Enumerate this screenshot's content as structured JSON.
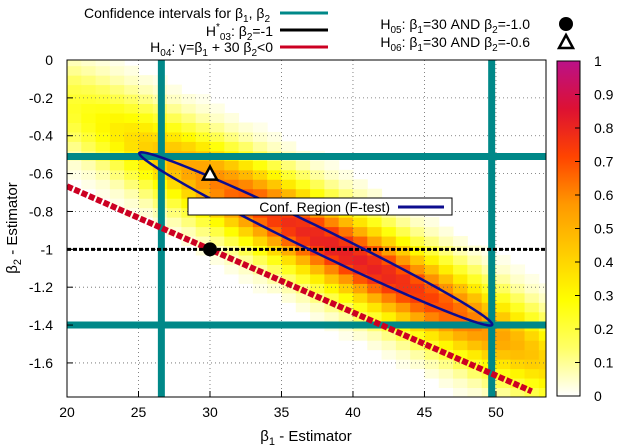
{
  "chart_data": {
    "type": "heatmap",
    "xlabel": {
      "main": "β",
      "sub": "1",
      "rest": " - Estimator"
    },
    "ylabel": {
      "main": "β",
      "sub": "2",
      "rest": " - Estimator"
    },
    "xlim": [
      20,
      53.5
    ],
    "ylim": [
      -1.78,
      0
    ],
    "x_ticks": [
      20,
      25,
      30,
      35,
      40,
      45,
      50
    ],
    "y_ticks": [
      0,
      -0.2,
      -0.4,
      -0.6,
      -0.8,
      -1,
      -1.2,
      -1.4,
      -1.6
    ],
    "y_tick_labels": [
      "0",
      "-0.2",
      "-0.4",
      "-0.6",
      "-0.8",
      "-1",
      "-1.2",
      "-1.4",
      "-1.6"
    ],
    "grid": true,
    "colorbar": {
      "range": [
        0,
        1
      ],
      "ticks": [
        0,
        0.1,
        0.2,
        0.3,
        0.4,
        0.5,
        0.6,
        0.7,
        0.8,
        0.9,
        1
      ],
      "colors": [
        "#ffffff",
        "#ffff66",
        "#ffff00",
        "#ffcc00",
        "#ff9900",
        "#ff4400",
        "#dd1133",
        "#bb1188"
      ]
    },
    "heatmap_model": {
      "center": [
        39.5,
        -1.02
      ],
      "direction_slope": -0.04,
      "along_scale": 12.0,
      "across_scale": 0.16,
      "peak": 0.82,
      "cell_x": 1.0,
      "cell_y": 0.05
    },
    "confidence_intervals": {
      "beta1": [
        26.6,
        49.7
      ],
      "beta2": [
        -1.4,
        -0.51
      ],
      "color": "#008888"
    },
    "h03_line": {
      "beta2": -1,
      "color": "#000000"
    },
    "h04_line": {
      "points": [
        [
          20,
          -0.667
        ],
        [
          52.5,
          -1.75
        ]
      ],
      "color": "#cc0022"
    },
    "h05_point": {
      "beta1": 30,
      "beta2": -1.0
    },
    "h06_point": {
      "beta1": 30,
      "beta2": -0.6
    },
    "conf_region": {
      "center": [
        37.4,
        -0.945
      ],
      "semi_major": 12.35,
      "semi_minor": 0.072,
      "slope": -0.0366,
      "color": "#0d0d8f"
    },
    "legend": {
      "ci_label": {
        "pre": "Confidence intervals for β",
        "s1": "1",
        "mid": ", β",
        "s2": "2"
      },
      "h03_label": {
        "pre": "H",
        "sup": "*",
        "sub": "03",
        "rest": ": β",
        "s2": "2",
        "tail": "=-1"
      },
      "h04_label": {
        "pre": "H",
        "sub": "04",
        "rest": ": γ=β",
        "s1": "1",
        "mid": " + 30 β",
        "s2": "2",
        "tail": "<0"
      },
      "h05_label": {
        "pre": "H",
        "sub": "05",
        "rest": ": β",
        "s1": "1",
        "mid": "=30 AND β",
        "s2": "2",
        "tail": "=-1.0"
      },
      "h06_label": {
        "pre": "H",
        "sub": "06",
        "rest": ": β",
        "s1": "1",
        "mid": "=30 AND β",
        "s2": "2",
        "tail": "=-0.6"
      },
      "conf_region_label": "Conf. Region  (F-test)"
    }
  }
}
